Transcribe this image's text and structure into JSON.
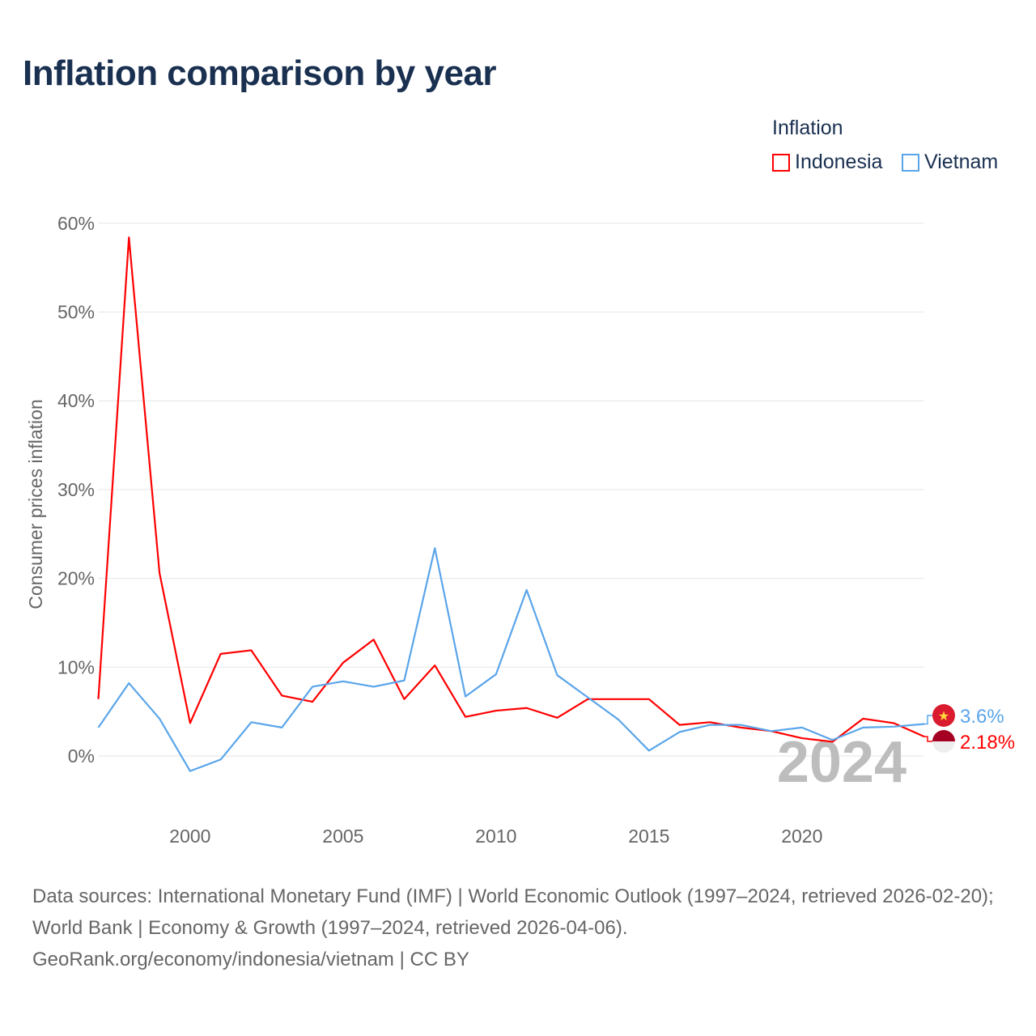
{
  "title": "Inflation comparison by year",
  "legend": {
    "title": "Inflation",
    "items": [
      {
        "label": "Indonesia",
        "color": "#ff0000"
      },
      {
        "label": "Vietnam",
        "color": "#5aa5ea"
      }
    ]
  },
  "chart_data": {
    "type": "line",
    "title": "Inflation comparison by year",
    "xlabel": "",
    "ylabel": "Consumer prices inflation",
    "ylim": [
      -6,
      62
    ],
    "xlim": [
      1997,
      2024
    ],
    "yticks": [
      0,
      10,
      20,
      30,
      40,
      50,
      60
    ],
    "ytick_labels": [
      "0%",
      "10%",
      "20%",
      "30%",
      "40%",
      "50%",
      "60%"
    ],
    "xticks": [
      2000,
      2005,
      2010,
      2015,
      2020
    ],
    "xtick_labels": [
      "2000",
      "2005",
      "2010",
      "2015",
      "2020"
    ],
    "grid": true,
    "x": [
      1997,
      1998,
      1999,
      2000,
      2001,
      2002,
      2003,
      2004,
      2005,
      2006,
      2007,
      2008,
      2009,
      2010,
      2011,
      2012,
      2013,
      2014,
      2015,
      2016,
      2017,
      2018,
      2019,
      2020,
      2021,
      2022,
      2023,
      2024
    ],
    "series": [
      {
        "name": "Indonesia",
        "color": "#ff0000",
        "values": [
          6.4,
          58.4,
          20.6,
          3.7,
          11.5,
          11.9,
          6.8,
          6.1,
          10.5,
          13.1,
          6.4,
          10.2,
          4.4,
          5.1,
          5.4,
          4.3,
          6.4,
          6.4,
          6.4,
          3.5,
          3.8,
          3.2,
          2.8,
          2.0,
          1.6,
          4.2,
          3.7,
          2.18
        ],
        "end_label": "2.18%"
      },
      {
        "name": "Vietnam",
        "color": "#5aa5ea",
        "values": [
          3.2,
          8.2,
          4.2,
          -1.7,
          -0.4,
          3.8,
          3.2,
          7.8,
          8.4,
          7.8,
          8.5,
          23.4,
          6.7,
          9.2,
          18.7,
          9.1,
          6.6,
          4.1,
          0.6,
          2.7,
          3.5,
          3.5,
          2.8,
          3.2,
          1.8,
          3.2,
          3.3,
          3.6
        ],
        "end_label": "3.6%"
      }
    ],
    "watermark_year": "2024"
  },
  "source": {
    "line1": "Data sources: International Monetary Fund (IMF) | World Economic Outlook (1997–2024, retrieved 2026-02-20); World Bank | Economy & Growth (1997–2024, retrieved 2026-04-06).",
    "line2": "GeoRank.org/economy/indonesia/vietnam | CC BY"
  }
}
